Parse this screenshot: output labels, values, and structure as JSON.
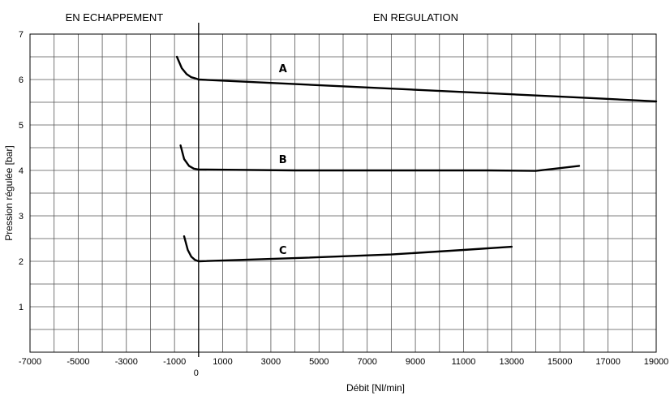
{
  "chart_data": {
    "type": "line",
    "title": "",
    "xlabel": "Débit [Nl/min]",
    "ylabel": "Pression régulée [bar]",
    "xlim": [
      -7000,
      19000
    ],
    "ylim": [
      0,
      7
    ],
    "x_ticks": [
      -7000,
      -5000,
      -3000,
      -1000,
      1000,
      3000,
      5000,
      7000,
      9000,
      11000,
      13000,
      15000,
      17000,
      19000
    ],
    "x_zero_label": "0",
    "y_ticks": [
      1,
      2,
      3,
      4,
      5,
      6,
      7
    ],
    "grid": true,
    "region_labels": [
      "EN ECHAPPEMENT",
      "EN REGULATION"
    ],
    "series": [
      {
        "name": "A",
        "x": [
          -900,
          -700,
          -500,
          -300,
          -100,
          0,
          4000,
          8000,
          12000,
          16000,
          19000
        ],
        "y": [
          6.5,
          6.25,
          6.12,
          6.05,
          6.02,
          6.0,
          5.9,
          5.8,
          5.7,
          5.6,
          5.52
        ]
      },
      {
        "name": "B",
        "x": [
          -750,
          -600,
          -400,
          -200,
          0,
          4000,
          8000,
          12000,
          14000,
          15000,
          15800
        ],
        "y": [
          4.55,
          4.25,
          4.1,
          4.04,
          4.02,
          4.0,
          4.0,
          4.0,
          3.99,
          4.05,
          4.1
        ]
      },
      {
        "name": "C",
        "x": [
          -600,
          -450,
          -300,
          -150,
          0,
          4000,
          8000,
          11000,
          13000
        ],
        "y": [
          2.55,
          2.25,
          2.1,
          2.03,
          2.0,
          2.07,
          2.15,
          2.25,
          2.32
        ]
      }
    ]
  }
}
